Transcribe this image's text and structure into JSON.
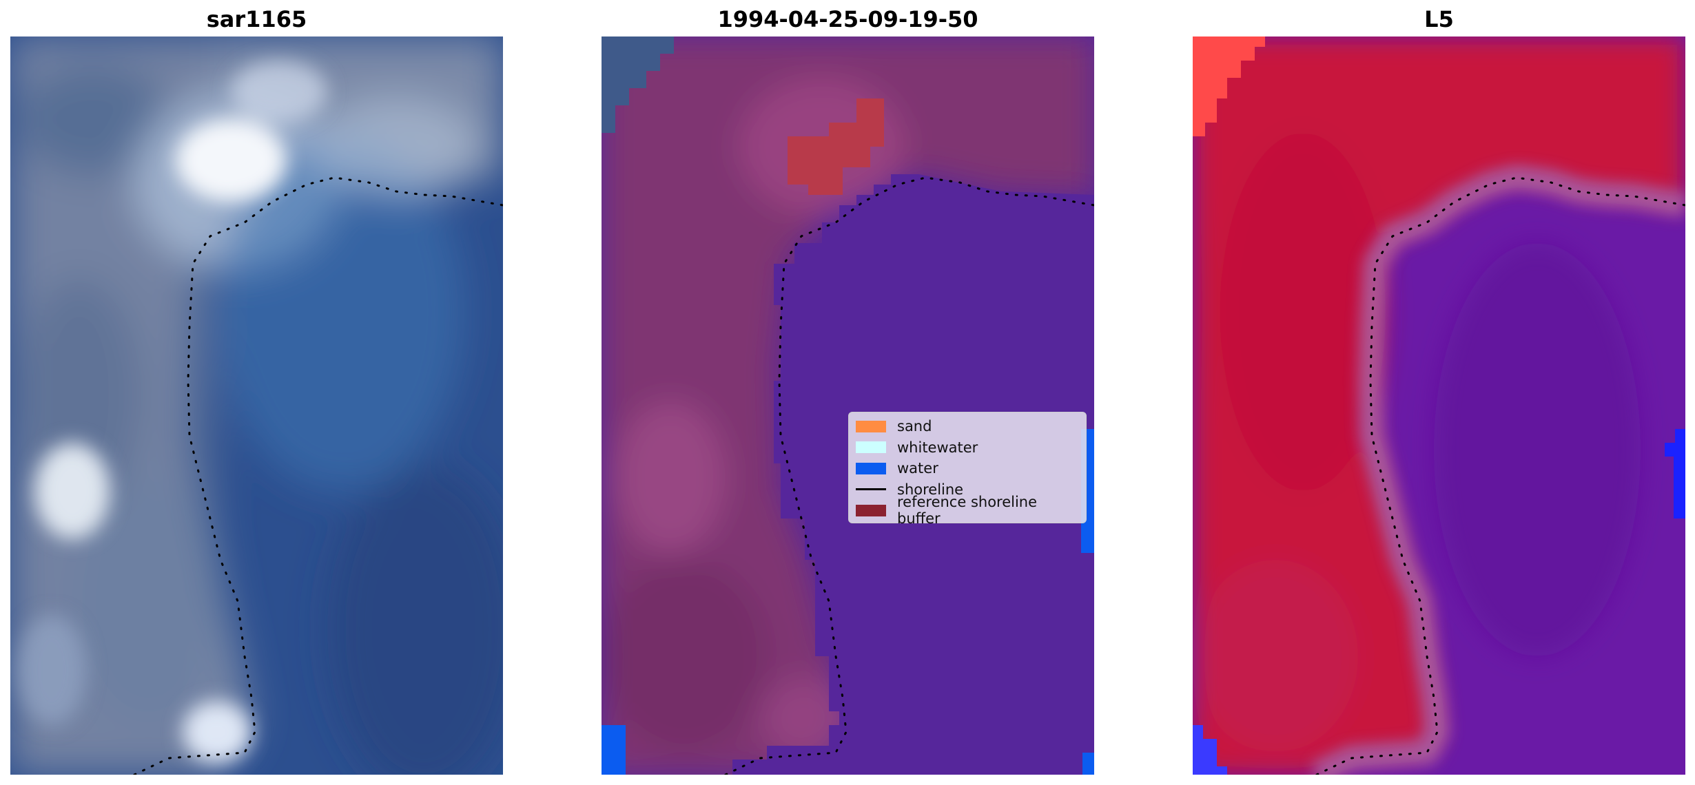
{
  "panels": [
    {
      "title": "sar1165"
    },
    {
      "title": "1994-04-25-09-19-50"
    },
    {
      "title": "L5"
    }
  ],
  "legend": {
    "items": [
      {
        "label": "sand",
        "color": "#ff8c42",
        "kind": "patch"
      },
      {
        "label": "whitewater",
        "color": "#ccffff",
        "kind": "patch"
      },
      {
        "label": "water",
        "color": "#0b5cf0",
        "kind": "patch"
      },
      {
        "label": "shoreline",
        "color": "#000000",
        "kind": "line"
      },
      {
        "label": "reference shoreline buffer",
        "color": "#8b2230",
        "kind": "patch"
      }
    ]
  },
  "colors": {
    "sar_water": "#2f5fa6",
    "sar_land": "#9aa8c0",
    "sar_cloud": "#f2f6fb",
    "class_land": "#7f3472",
    "class_water": "#56269b",
    "class_water_bright": "#0b5cf0",
    "class_buffer": "#b83a4a",
    "ndwi_land": "#c8143c",
    "ndwi_water": "#6a1aa6",
    "ndwi_bright_red": "#ff4a4a",
    "ndwi_bright_blue": "#2a2aff"
  }
}
